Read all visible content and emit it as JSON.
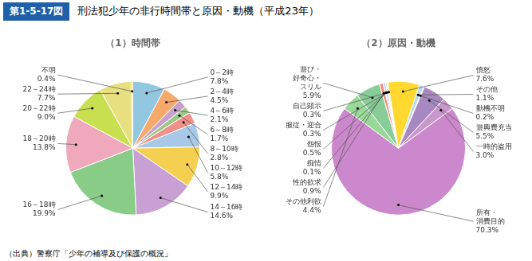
{
  "title": "第1-5-17図",
  "subtitle": "刑法犯少年の非行時間帯と原因・動機（平成23年）",
  "annotations": [
    "（出典）警察庁「少年の補導及び保護の概況」"
  ],
  "chart_data": [
    {
      "type": "pie",
      "title": "（1）時間帯",
      "categories": [
        "0～2時",
        "2～4時",
        "4～6時",
        "6～8時",
        "8～10時",
        "10～12時",
        "12～14時",
        "14～16時",
        "16～18時",
        "18～20時",
        "20～22時",
        "22～24時",
        "不明"
      ],
      "values": [
        7.8,
        4.5,
        2.1,
        1.7,
        2.8,
        5.8,
        9.9,
        14.6,
        19.9,
        13.8,
        9.0,
        7.7,
        0.4
      ],
      "value_labels": [
        "7.8%",
        "4.5%",
        "2.1%",
        "1.7%",
        "2.8%",
        "5.8%",
        "9.9%",
        "14.6%",
        "19.9%",
        "13.8%",
        "9.0%",
        "7.7%",
        "0.4%"
      ],
      "colors": [
        "#93C7E0",
        "#F5A96A",
        "#C8A0CC",
        "#9ACA88",
        "#F09088",
        "#A8C8E8",
        "#F5D050",
        "#C8A0D4",
        "#88CC88",
        "#F0A8BC",
        "#C8E050",
        "#E8E080",
        "#F5D050"
      ],
      "data_labels": true
    },
    {
      "type": "pie",
      "title": "（2）原因・動機",
      "categories": [
        "所有・消費目的",
        "その他利欲",
        "遊び・好奇心・スリル",
        "性的欲求",
        "痴情",
        "怨恨",
        "服従・迎合",
        "自己顕示",
        "憤怒",
        "その他",
        "動機不明",
        "遊興費充当",
        "一時的盗用"
      ],
      "values": [
        70.3,
        4.4,
        5.9,
        0.9,
        0.1,
        0.5,
        0.3,
        0.3,
        7.6,
        1.1,
        0.2,
        5.5,
        3.0
      ],
      "value_labels": [
        "70.3%",
        "4.4%",
        "5.9%",
        "0.9%",
        "0.1%",
        "0.5%",
        "0.3%",
        "0.3%",
        "7.6%",
        "1.1%",
        "0.2%",
        "5.5%",
        "3.0%"
      ],
      "colors": [
        "#CC88CC",
        "#98D898",
        "#88CC98",
        "#F09080",
        "#F8B8C8",
        "#A8D0E8",
        "#98E098",
        "#FFD830",
        "#FFD830",
        "#B8D8F0",
        "#F8A840",
        "#A888C0",
        "#C898CC"
      ],
      "data_labels": true
    }
  ]
}
